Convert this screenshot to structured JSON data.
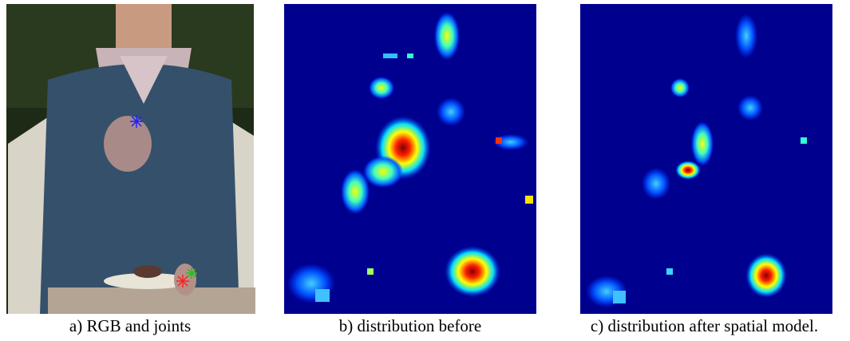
{
  "captions": [
    "a) RGB and joints",
    "b) distribution before",
    "c) distribution after spatial model."
  ]
}
